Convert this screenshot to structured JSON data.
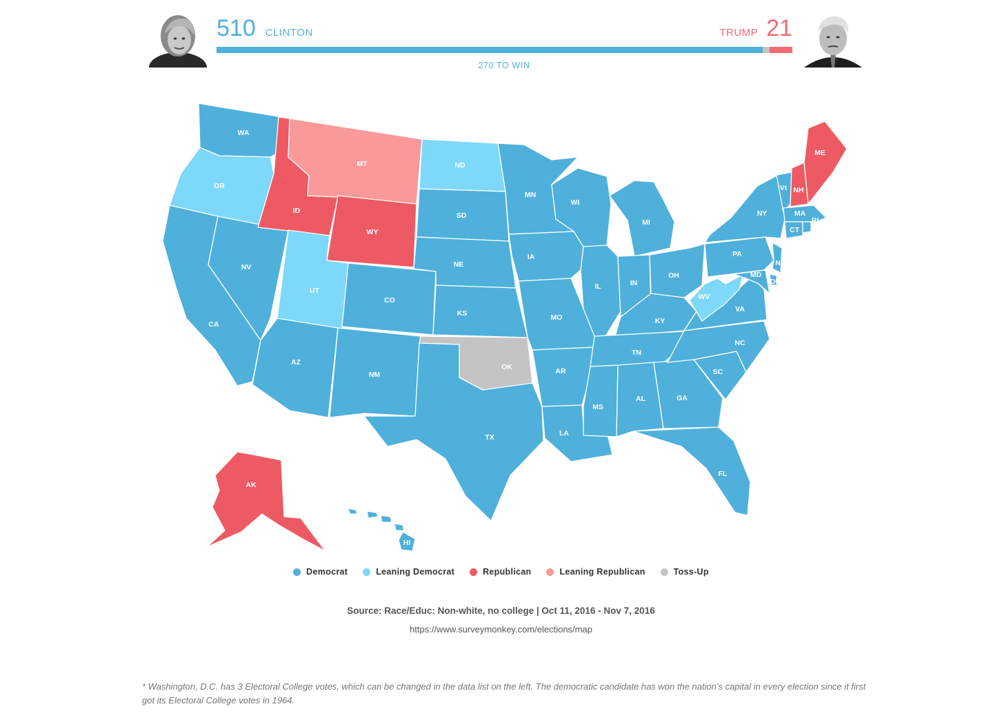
{
  "header": {
    "clinton": {
      "votes": "510",
      "name": "CLINTON",
      "color": "#4fb0db"
    },
    "trump": {
      "votes": "21",
      "name": "TRUMP",
      "color": "#ee6c73"
    },
    "toss_up_votes": 7,
    "total_votes": 538,
    "win_label": "270 TO WIN"
  },
  "legend": [
    {
      "key": "dem",
      "label": "Democrat",
      "color": "#4fb0db"
    },
    {
      "key": "ldem",
      "label": "Leaning Democrat",
      "color": "#7dd8f9"
    },
    {
      "key": "rep",
      "label": "Republican",
      "color": "#ee5a63"
    },
    {
      "key": "lrep",
      "label": "Leaning Republican",
      "color": "#f99999"
    },
    {
      "key": "toss",
      "label": "Toss-Up",
      "color": "#c4c4c4"
    }
  ],
  "states": [
    {
      "abbr": "WA",
      "cat": "dem"
    },
    {
      "abbr": "OR",
      "cat": "ldem"
    },
    {
      "abbr": "CA",
      "cat": "dem"
    },
    {
      "abbr": "NV",
      "cat": "dem"
    },
    {
      "abbr": "ID",
      "cat": "rep"
    },
    {
      "abbr": "MT",
      "cat": "lrep"
    },
    {
      "abbr": "WY",
      "cat": "rep"
    },
    {
      "abbr": "UT",
      "cat": "ldem"
    },
    {
      "abbr": "AZ",
      "cat": "dem"
    },
    {
      "abbr": "CO",
      "cat": "dem"
    },
    {
      "abbr": "NM",
      "cat": "dem"
    },
    {
      "abbr": "ND",
      "cat": "ldem"
    },
    {
      "abbr": "SD",
      "cat": "dem"
    },
    {
      "abbr": "NE",
      "cat": "dem"
    },
    {
      "abbr": "KS",
      "cat": "dem"
    },
    {
      "abbr": "OK",
      "cat": "toss"
    },
    {
      "abbr": "TX",
      "cat": "dem"
    },
    {
      "abbr": "MN",
      "cat": "dem"
    },
    {
      "abbr": "IA",
      "cat": "dem"
    },
    {
      "abbr": "MO",
      "cat": "dem"
    },
    {
      "abbr": "AR",
      "cat": "dem"
    },
    {
      "abbr": "LA",
      "cat": "dem"
    },
    {
      "abbr": "WI",
      "cat": "dem"
    },
    {
      "abbr": "IL",
      "cat": "dem"
    },
    {
      "abbr": "MI",
      "cat": "dem"
    },
    {
      "abbr": "IN",
      "cat": "dem"
    },
    {
      "abbr": "OH",
      "cat": "dem"
    },
    {
      "abbr": "KY",
      "cat": "dem"
    },
    {
      "abbr": "TN",
      "cat": "dem"
    },
    {
      "abbr": "MS",
      "cat": "dem"
    },
    {
      "abbr": "AL",
      "cat": "dem"
    },
    {
      "abbr": "GA",
      "cat": "dem"
    },
    {
      "abbr": "FL",
      "cat": "dem"
    },
    {
      "abbr": "SC",
      "cat": "dem"
    },
    {
      "abbr": "NC",
      "cat": "dem"
    },
    {
      "abbr": "VA",
      "cat": "dem"
    },
    {
      "abbr": "WV",
      "cat": "ldem"
    },
    {
      "abbr": "PA",
      "cat": "dem"
    },
    {
      "abbr": "NY",
      "cat": "dem"
    },
    {
      "abbr": "Vt",
      "cat": "dem"
    },
    {
      "abbr": "NH",
      "cat": "rep"
    },
    {
      "abbr": "ME",
      "cat": "rep"
    },
    {
      "abbr": "MA",
      "cat": "dem"
    },
    {
      "abbr": "CT",
      "cat": "dem"
    },
    {
      "abbr": "RI",
      "cat": "dem"
    },
    {
      "abbr": "NJ",
      "cat": "dem"
    },
    {
      "abbr": "DE",
      "cat": "dem"
    },
    {
      "abbr": "MD",
      "cat": "dem"
    },
    {
      "abbr": "AK",
      "cat": "rep"
    },
    {
      "abbr": "HI",
      "cat": "dem"
    }
  ],
  "footer": {
    "source": "Source: Race/Educ: Non-white, no college | Oct 11, 2016 - Nov 7, 2016",
    "url": "https://www.surveymonkey.com/elections/map",
    "footnote": "* Washington, D.C. has 3 Electoral College votes, which can be changed in the data list on the left. The democratic candidate has won the nation's capital in every election since it first got its Electoral College votes in 1964."
  }
}
